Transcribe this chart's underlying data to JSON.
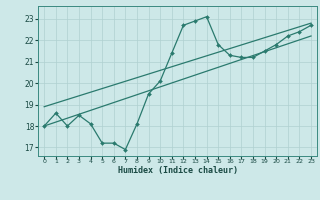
{
  "xlabel": "Humidex (Indice chaleur)",
  "bg_color": "#cde8e8",
  "line_color": "#2a7a6e",
  "grid_color": "#b0d0d0",
  "xlim": [
    -0.5,
    23.5
  ],
  "ylim": [
    16.6,
    23.6
  ],
  "yticks": [
    17,
    18,
    19,
    20,
    21,
    22,
    23
  ],
  "xticks": [
    0,
    1,
    2,
    3,
    4,
    5,
    6,
    7,
    8,
    9,
    10,
    11,
    12,
    13,
    14,
    15,
    16,
    17,
    18,
    19,
    20,
    21,
    22,
    23
  ],
  "humidex_x": [
    0,
    1,
    2,
    3,
    4,
    5,
    6,
    7,
    8,
    9,
    10,
    11,
    12,
    13,
    14,
    15,
    16,
    17,
    18,
    19,
    20,
    21,
    22,
    23
  ],
  "humidex_y": [
    18.0,
    18.6,
    18.0,
    18.5,
    18.1,
    17.2,
    17.2,
    16.9,
    18.1,
    19.5,
    20.1,
    21.4,
    22.7,
    22.9,
    23.1,
    21.8,
    21.3,
    21.2,
    21.2,
    21.5,
    21.8,
    22.2,
    22.4,
    22.7
  ],
  "reg_line1_x": [
    0,
    23
  ],
  "reg_line1_y": [
    18.0,
    22.2
  ],
  "reg_line2_x": [
    0,
    23
  ],
  "reg_line2_y": [
    18.9,
    22.8
  ]
}
